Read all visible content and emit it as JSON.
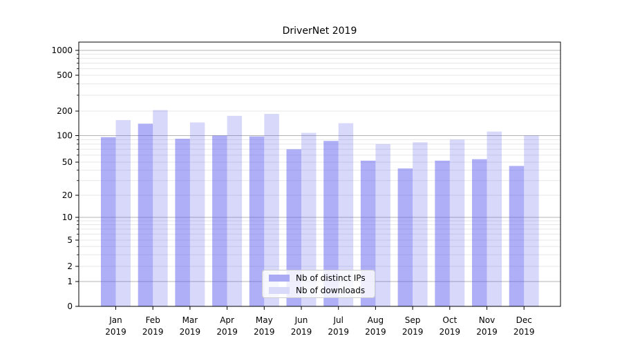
{
  "chart_data": {
    "type": "bar",
    "title": "DriverNet 2019",
    "y_scale": "symlog",
    "grid": true,
    "legend_position": "lower-center",
    "y_ticks": [
      0,
      1,
      2,
      5,
      10,
      20,
      50,
      100,
      200,
      500,
      1000
    ],
    "ylim": [
      0,
      1280
    ],
    "x_tick_months": [
      "Jan",
      "Feb",
      "Mar",
      "Apr",
      "May",
      "Jun",
      "Jul",
      "Aug",
      "Sep",
      "Oct",
      "Nov",
      "Dec"
    ],
    "x_tick_year": "2019",
    "series": [
      {
        "name": "Nb of distinct IPs",
        "color": "#a9a9f4",
        "base_color": "#5555ee",
        "opacity": 0.47,
        "values": [
          96,
          140,
          92,
          100,
          98,
          70,
          87,
          52,
          42,
          52,
          54,
          45
        ]
      },
      {
        "name": "Nb of downloads",
        "color": "#d9d9fa",
        "base_color": "#5555ee",
        "opacity": 0.23,
        "values": [
          155,
          205,
          145,
          175,
          185,
          108,
          142,
          80,
          84,
          90,
          112,
          100
        ]
      }
    ],
    "colors": {
      "major_grid": "#b3b3b3",
      "minor_grid": "#e7e7e7",
      "axis": "#000000"
    }
  }
}
